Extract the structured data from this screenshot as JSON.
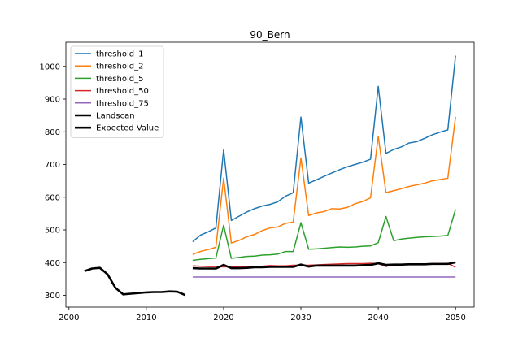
{
  "chart_data": {
    "type": "line",
    "title": "90_Bern",
    "xlabel": "",
    "ylabel": "",
    "xlim": [
      1999.6,
      2052.4
    ],
    "ylim": [
      264,
      1074
    ],
    "x_ticks": [
      2000,
      2010,
      2020,
      2030,
      2040,
      2050
    ],
    "y_ticks": [
      300,
      400,
      500,
      600,
      700,
      800,
      900,
      1000
    ],
    "grid": false,
    "legend_position": "top-left",
    "series": [
      {
        "name": "threshold_1",
        "color": "#1f77b4",
        "width": 1.5,
        "x": [
          2016,
          2017,
          2018,
          2019,
          2020,
          2021,
          2022,
          2023,
          2024,
          2025,
          2026,
          2027,
          2028,
          2029,
          2030,
          2031,
          2032,
          2033,
          2034,
          2035,
          2036,
          2037,
          2038,
          2039,
          2040,
          2041,
          2042,
          2043,
          2044,
          2045,
          2046,
          2047,
          2048,
          2049,
          2050
        ],
        "y": [
          464,
          484,
          494,
          506,
          745,
          529,
          542,
          555,
          565,
          573,
          578,
          586,
          603,
          614,
          845,
          643,
          653,
          664,
          674,
          684,
          693,
          700,
          707,
          716,
          939,
          734,
          746,
          754,
          766,
          770,
          780,
          791,
          799,
          806,
          1033
        ]
      },
      {
        "name": "threshold_2",
        "color": "#ff7f0e",
        "width": 1.5,
        "x": [
          2016,
          2017,
          2018,
          2019,
          2020,
          2021,
          2022,
          2023,
          2024,
          2025,
          2026,
          2027,
          2028,
          2029,
          2030,
          2031,
          2032,
          2033,
          2034,
          2035,
          2036,
          2037,
          2038,
          2039,
          2040,
          2041,
          2042,
          2043,
          2044,
          2045,
          2046,
          2047,
          2048,
          2049,
          2050
        ],
        "y": [
          425,
          434,
          440,
          447,
          658,
          460,
          468,
          479,
          486,
          498,
          506,
          509,
          520,
          524,
          720,
          544,
          552,
          556,
          565,
          564,
          569,
          580,
          587,
          598,
          786,
          614,
          620,
          626,
          633,
          638,
          643,
          650,
          654,
          658,
          846
        ]
      },
      {
        "name": "threshold_5",
        "color": "#2ca02c",
        "width": 1.5,
        "x": [
          2016,
          2017,
          2018,
          2019,
          2020,
          2021,
          2022,
          2023,
          2024,
          2025,
          2026,
          2027,
          2028,
          2029,
          2030,
          2031,
          2032,
          2033,
          2034,
          2035,
          2036,
          2037,
          2038,
          2039,
          2040,
          2041,
          2042,
          2043,
          2044,
          2045,
          2046,
          2047,
          2048,
          2049,
          2050
        ],
        "y": [
          407,
          410,
          412,
          414,
          514,
          413,
          416,
          419,
          420,
          423,
          424,
          426,
          434,
          434,
          522,
          441,
          442,
          444,
          446,
          448,
          447,
          448,
          450,
          451,
          461,
          541,
          467,
          472,
          475,
          477,
          479,
          480,
          481,
          483,
          563
        ]
      },
      {
        "name": "threshold_50",
        "color": "#d62728",
        "width": 1.5,
        "x": [
          2016,
          2017,
          2018,
          2019,
          2020,
          2021,
          2022,
          2023,
          2024,
          2025,
          2026,
          2027,
          2028,
          2029,
          2030,
          2031,
          2032,
          2033,
          2034,
          2035,
          2036,
          2037,
          2038,
          2039,
          2040,
          2041,
          2042,
          2043,
          2044,
          2045,
          2046,
          2047,
          2048,
          2049,
          2050
        ],
        "y": [
          390,
          389,
          388,
          388,
          387,
          388,
          387,
          387,
          388,
          389,
          391,
          390,
          390,
          392,
          392,
          392,
          393,
          394,
          395,
          396,
          397,
          397,
          397,
          398,
          397,
          388,
          395,
          395,
          396,
          396,
          396,
          397,
          397,
          398,
          386
        ]
      },
      {
        "name": "threshold_75",
        "color": "#9467bd",
        "width": 1.5,
        "x": [
          2016,
          2050
        ],
        "y": [
          356,
          356
        ]
      },
      {
        "name": "Landscan",
        "color": "#000000",
        "width": 2.6,
        "x": [
          2002,
          2003,
          2004,
          2005,
          2006,
          2007,
          2008,
          2009,
          2010,
          2011,
          2012,
          2013,
          2014,
          2015
        ],
        "y": [
          374,
          382,
          384,
          364,
          323,
          303,
          305,
          307,
          309,
          310,
          310,
          312,
          311,
          301
        ]
      },
      {
        "name": "Expected Value",
        "color": "#000000",
        "width": 2.6,
        "x": [
          2016,
          2017,
          2018,
          2019,
          2020,
          2021,
          2022,
          2023,
          2024,
          2025,
          2026,
          2027,
          2028,
          2029,
          2030,
          2031,
          2032,
          2033,
          2034,
          2035,
          2036,
          2037,
          2038,
          2039,
          2040,
          2041,
          2042,
          2043,
          2044,
          2045,
          2046,
          2047,
          2048,
          2049,
          2050
        ],
        "y": [
          383,
          382,
          382,
          382,
          393,
          383,
          383,
          384,
          386,
          386,
          387,
          387,
          387,
          387,
          394,
          388,
          391,
          391,
          391,
          391,
          391,
          391,
          392,
          393,
          398,
          393,
          394,
          394,
          395,
          395,
          395,
          396,
          396,
          396,
          401
        ]
      }
    ]
  }
}
